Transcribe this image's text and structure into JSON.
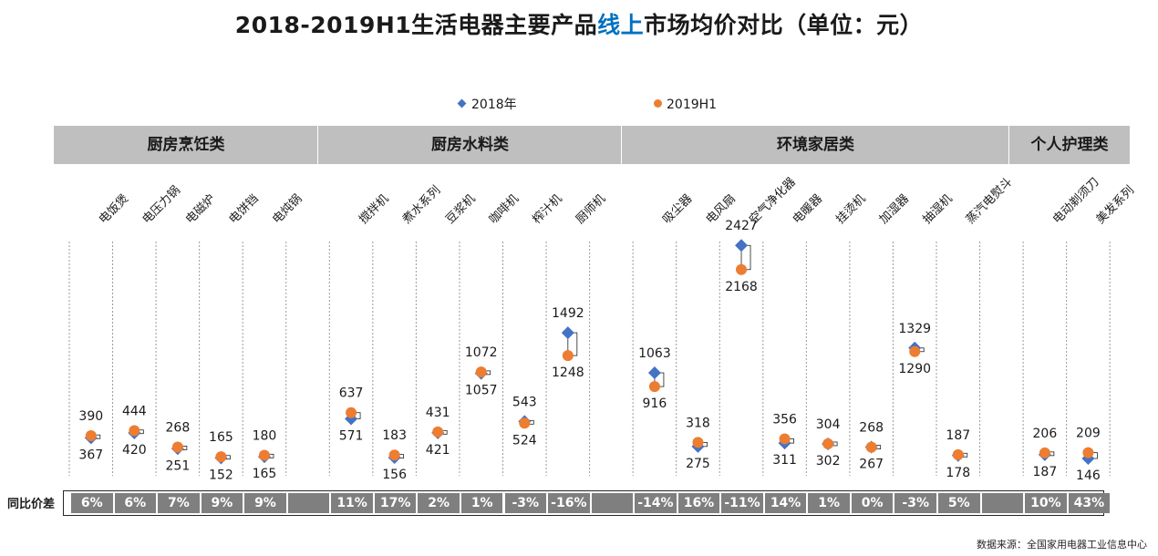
{
  "title": {
    "prefix": "2018-2019H1生活电器主要产品",
    "highlight": "线上",
    "suffix": "市场均价对比（单位：元）"
  },
  "legend": [
    {
      "name": "2018年",
      "marker": "diamond",
      "color": "#4472c4"
    },
    {
      "name": "2019H1",
      "marker": "circle",
      "color": "#ed7d31"
    }
  ],
  "categories": [
    "厨房烹饪类",
    "厨房水料类",
    "环境家居类",
    "个人护理类"
  ],
  "diff_label": "同比价差",
  "source": "数据来源：全国家用电器工业信息中心",
  "chart_data": {
    "type": "scatter",
    "title": "2018-2019H1生活电器主要产品线上市场均价对比（单位：元）",
    "ylim": [
      0,
      2600
    ],
    "series_names": [
      "2018年",
      "2019H1"
    ],
    "groups": [
      {
        "name": "厨房烹饪类",
        "items": [
          {
            "label": "电饭煲",
            "v2018": 367,
            "v2019": 390,
            "d2018": "367",
            "d2019": "390",
            "diff": "6%"
          },
          {
            "label": "电压力锅",
            "v2018": 420,
            "v2019": 444,
            "d2018": "420",
            "d2019": "444",
            "diff": "6%"
          },
          {
            "label": "电磁炉",
            "v2018": 251,
            "v2019": 268,
            "d2018": "251",
            "d2019": "268",
            "diff": "7%"
          },
          {
            "label": "电饼铛",
            "v2018": 152,
            "v2019": 165,
            "d2018": "152",
            "d2019": "165",
            "diff": "9%"
          },
          {
            "label": "电炖锅",
            "v2018": 165,
            "v2019": 180,
            "d2018": "165",
            "d2019": "180",
            "diff": "9%"
          }
        ]
      },
      {
        "name": "厨房水料类",
        "items": [
          {
            "label": "搅拌机",
            "v2018": 571,
            "v2019": 637,
            "d2018": "571",
            "d2019": "637",
            "diff": "11%"
          },
          {
            "label": "煮水系列",
            "v2018": 156,
            "v2019": 183,
            "d2018": "156",
            "d2019": "183",
            "diff": "17%"
          },
          {
            "label": "豆浆机",
            "v2018": 421,
            "v2019": 431,
            "d2018": "421",
            "d2019": "431",
            "diff": "2%"
          },
          {
            "label": "咖啡机",
            "v2018": 1057,
            "v2019": 1072,
            "d2018": "1057",
            "d2019": "1072",
            "diff": "1%"
          },
          {
            "label": "榨汁机",
            "v2018": 543,
            "v2019": 524,
            "d2018": "543",
            "d2019": "524",
            "diff": "-3%"
          },
          {
            "label": "厨师机",
            "v2018": 1492,
            "v2019": 1248,
            "d2018": "1492",
            "d2019": "1248",
            "diff": "-16%"
          }
        ]
      },
      {
        "name": "环境家居类",
        "items": [
          {
            "label": "吸尘器",
            "v2018": 1063,
            "v2019": 916,
            "d2018": "1063",
            "d2019": "916",
            "diff": "-14%"
          },
          {
            "label": "电风扇",
            "v2018": 275,
            "v2019": 318,
            "d2018": "275",
            "d2019": "318",
            "diff": "16%"
          },
          {
            "label": "空气净化器",
            "v2018": 2427,
            "v2019": 2168,
            "d2018": "2427",
            "d2019": "2168",
            "diff": "-11%"
          },
          {
            "label": "电暖器",
            "v2018": 311,
            "v2019": 356,
            "d2018": "311",
            "d2019": "356",
            "diff": "14%"
          },
          {
            "label": "挂烫机",
            "v2018": 302,
            "v2019": 304,
            "d2018": "302",
            "d2019": "304",
            "diff": "1%"
          },
          {
            "label": "加湿器",
            "v2018": 268,
            "v2019": 267,
            "d2018": "268",
            "d2019": "267",
            "diff": "0%"
          },
          {
            "label": "抽湿机",
            "v2018": 1329,
            "v2019": 1290,
            "d2018": "1329",
            "d2019": "1290",
            "diff": "-3%"
          },
          {
            "label": "蒸汽电熨斗",
            "v2018": 178,
            "v2019": 187,
            "d2018": "178",
            "d2019": "187",
            "diff": "5%"
          }
        ]
      },
      {
        "name": "个人护理类",
        "items": [
          {
            "label": "电动剃须刀",
            "v2018": 187,
            "v2019": 206,
            "d2018": "187",
            "d2019": "206",
            "diff": "10%"
          },
          {
            "label": "美发系列",
            "v2018": 146,
            "v2019": 209,
            "d2018": "146",
            "d2019": "209",
            "diff": "43%"
          }
        ]
      }
    ]
  }
}
